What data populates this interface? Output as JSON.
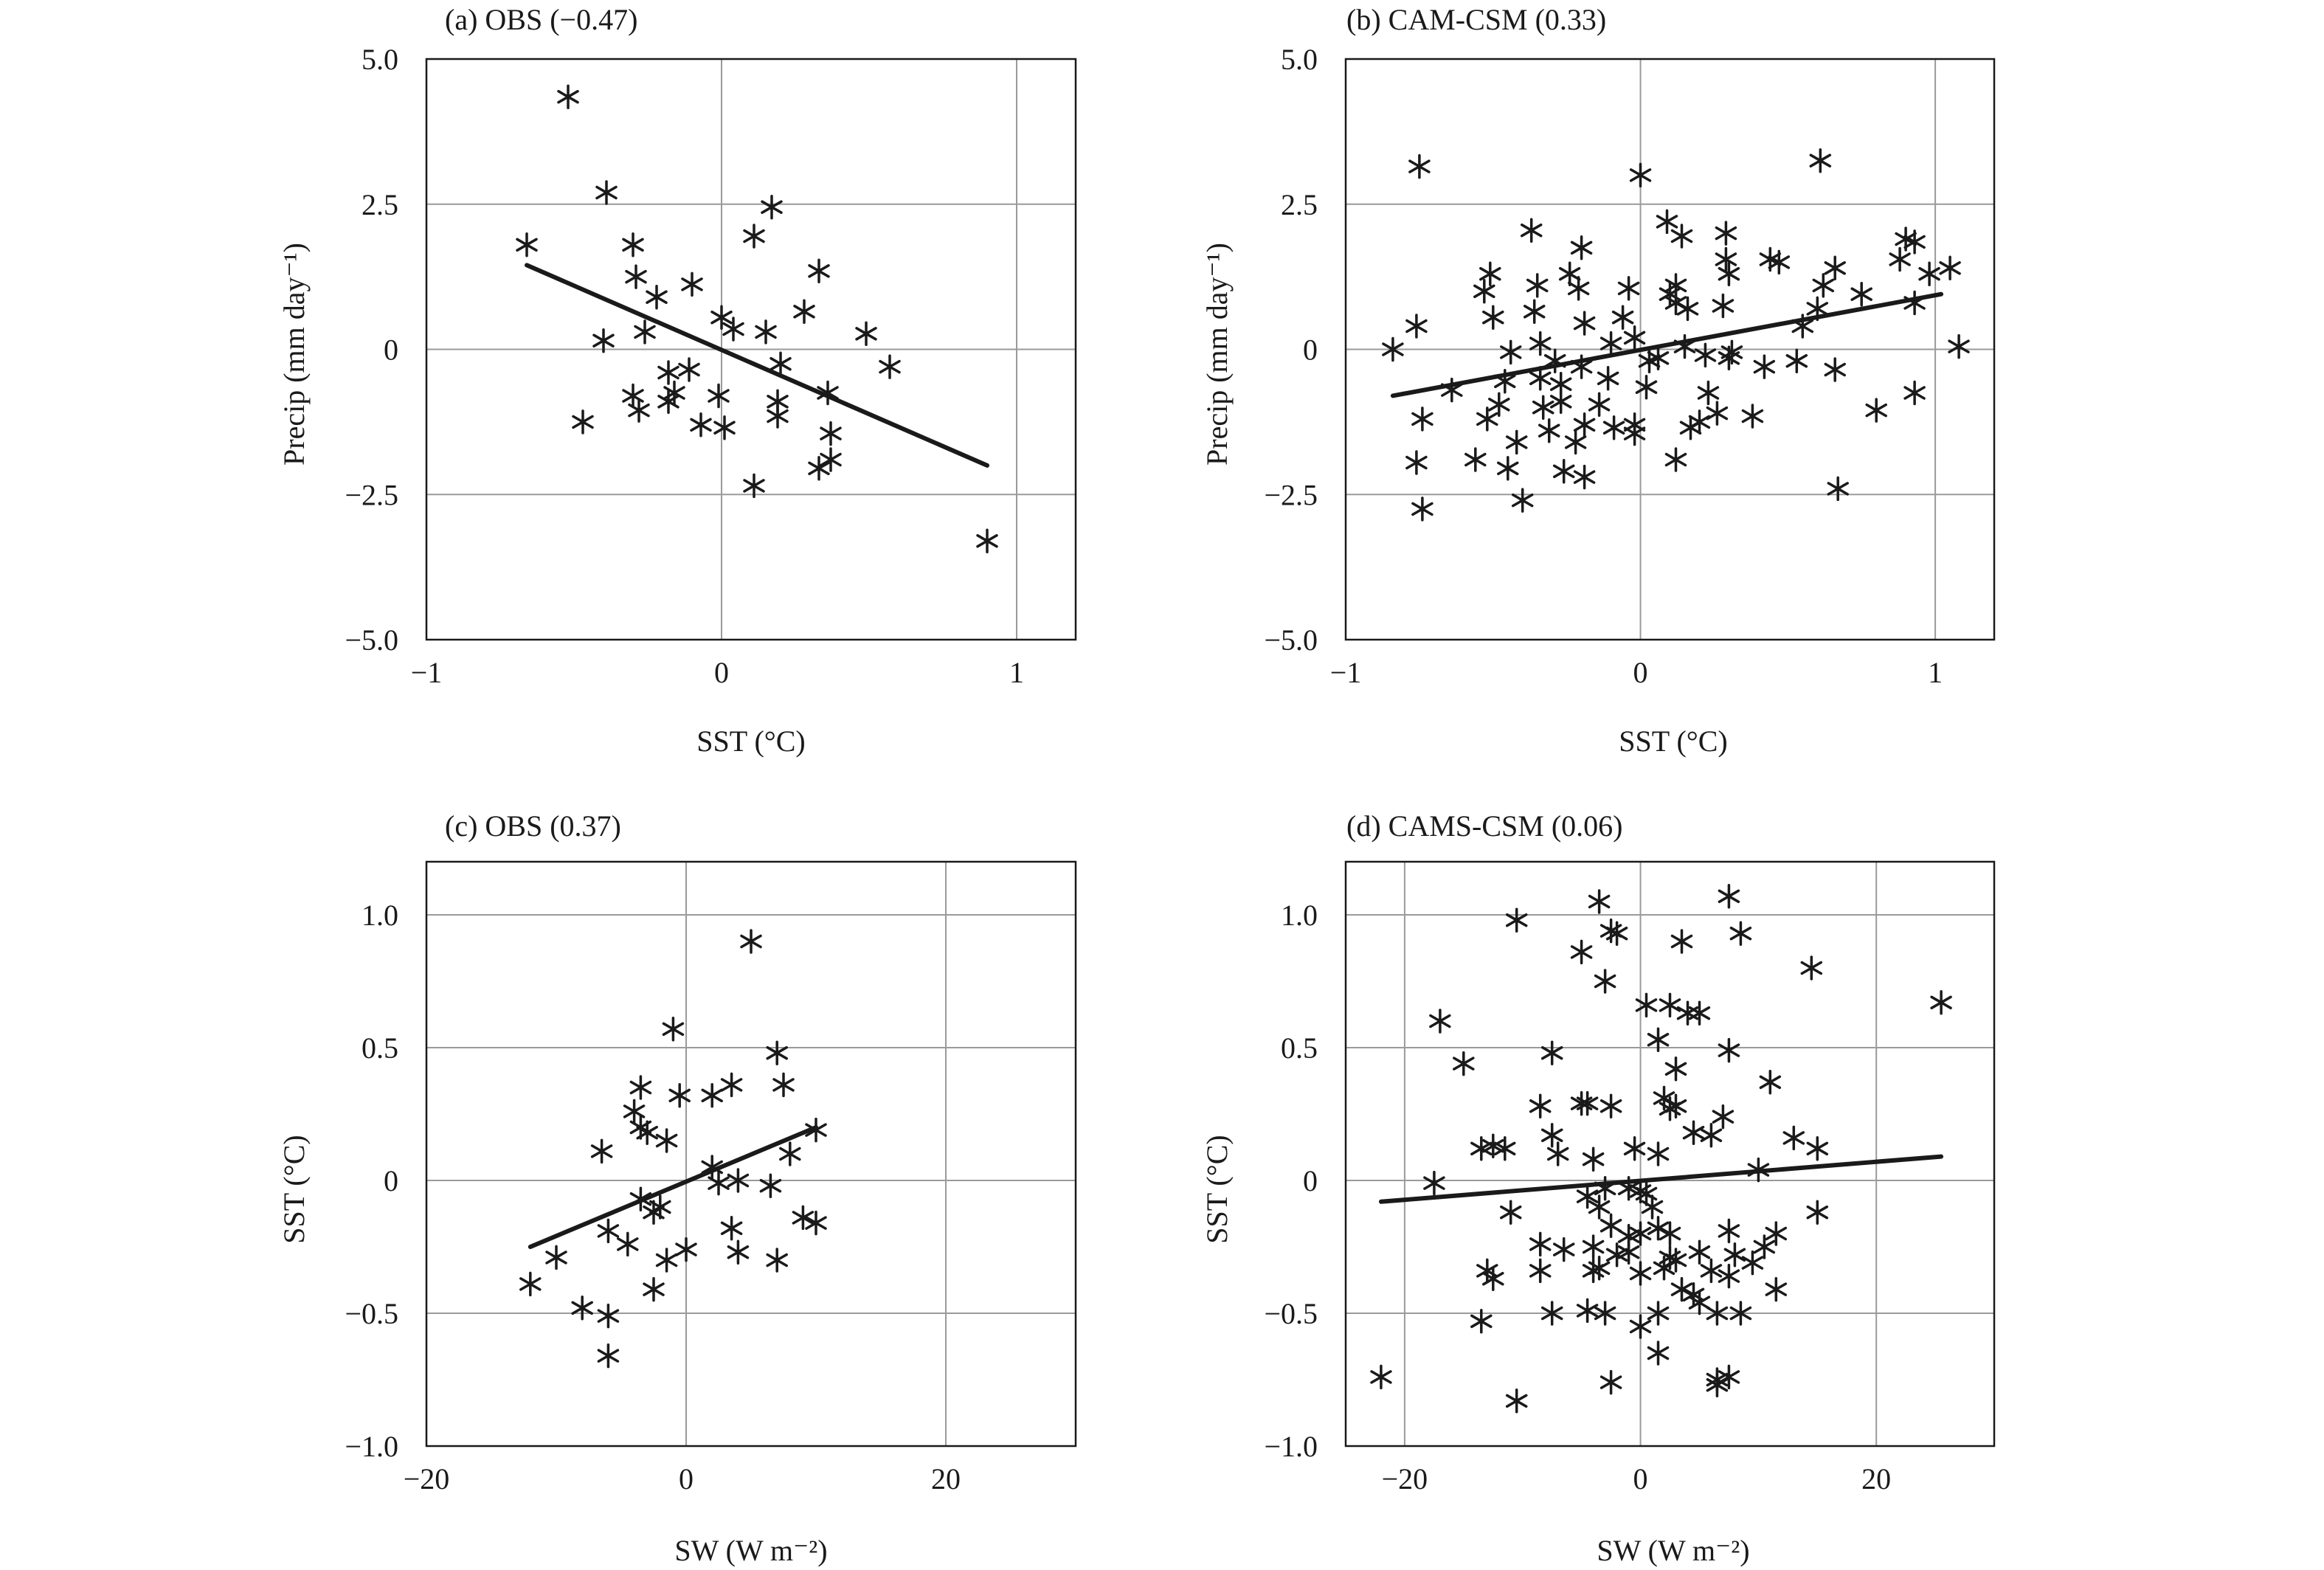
{
  "chart_data": [
    {
      "id": "a",
      "type": "scatter",
      "title": "(a) OBS (−0.47)",
      "xlabel": "SST (°C)",
      "ylabel": "Precip (mm day⁻¹)",
      "xlim": [
        -1,
        1.2
      ],
      "ylim": [
        -5,
        5
      ],
      "xticks": [
        -1,
        0,
        1
      ],
      "xtick_labels": [
        "−1",
        "0",
        "1"
      ],
      "yticks": [
        -5,
        -2.5,
        0,
        2.5,
        5
      ],
      "ytick_labels": [
        "−5.0",
        "−2.5",
        "0",
        "2.5",
        "5.0"
      ],
      "grid": true,
      "marker": "asterisk",
      "regression": {
        "x": [
          -0.66,
          0.9
        ],
        "y": [
          1.45,
          -2.0
        ]
      },
      "points": [
        [
          -0.52,
          4.35
        ],
        [
          -0.39,
          2.7
        ],
        [
          -0.66,
          1.8
        ],
        [
          -0.3,
          1.8
        ],
        [
          -0.29,
          1.25
        ],
        [
          -0.22,
          0.9
        ],
        [
          -0.1,
          1.12
        ],
        [
          -0.26,
          0.3
        ],
        [
          -0.4,
          0.15
        ],
        [
          -0.18,
          -0.4
        ],
        [
          -0.16,
          -0.75
        ],
        [
          -0.18,
          -0.9
        ],
        [
          -0.28,
          -1.05
        ],
        [
          -0.3,
          -0.8
        ],
        [
          -0.11,
          -0.35
        ],
        [
          -0.07,
          -1.3
        ],
        [
          -0.47,
          -1.25
        ],
        [
          0.0,
          0.55
        ],
        [
          0.04,
          0.35
        ],
        [
          -0.01,
          -0.8
        ],
        [
          0.01,
          -1.35
        ],
        [
          0.11,
          1.95
        ],
        [
          0.17,
          2.45
        ],
        [
          0.15,
          0.3
        ],
        [
          0.2,
          -0.25
        ],
        [
          0.19,
          -0.9
        ],
        [
          0.19,
          -1.15
        ],
        [
          0.28,
          0.65
        ],
        [
          0.33,
          1.35
        ],
        [
          0.36,
          -0.75
        ],
        [
          0.37,
          -1.45
        ],
        [
          0.37,
          -1.9
        ],
        [
          0.33,
          -2.05
        ],
        [
          0.11,
          -2.35
        ],
        [
          0.49,
          0.27
        ],
        [
          0.57,
          -0.3
        ],
        [
          0.9,
          -3.3
        ]
      ]
    },
    {
      "id": "b",
      "type": "scatter",
      "title": "(b) CAM-CSM (0.33)",
      "xlabel": "SST (°C)",
      "ylabel": "Precip (mm day⁻¹)",
      "xlim": [
        -1,
        1.2
      ],
      "ylim": [
        -5,
        5
      ],
      "xticks": [
        -1,
        0,
        1
      ],
      "xtick_labels": [
        "−1",
        "0",
        "1"
      ],
      "yticks": [
        -5,
        -2.5,
        0,
        2.5,
        5
      ],
      "ytick_labels": [
        "−5.0",
        "−2.5",
        "0",
        "2.5",
        "5.0"
      ],
      "grid": true,
      "marker": "asterisk",
      "regression": {
        "x": [
          -0.84,
          1.02
        ],
        "y": [
          -0.8,
          0.95
        ]
      },
      "points": [
        [
          -0.75,
          3.15
        ],
        [
          0.0,
          3.0
        ],
        [
          0.61,
          3.25
        ],
        [
          -0.84,
          0.0
        ],
        [
          -0.76,
          0.4
        ],
        [
          -0.74,
          -1.2
        ],
        [
          -0.76,
          -1.95
        ],
        [
          -0.74,
          -2.75
        ],
        [
          -0.64,
          -0.7
        ],
        [
          -0.56,
          -1.9
        ],
        [
          -0.53,
          1.0
        ],
        [
          -0.51,
          1.3
        ],
        [
          -0.5,
          0.55
        ],
        [
          -0.46,
          -0.55
        ],
        [
          -0.44,
          -0.05
        ],
        [
          -0.48,
          -0.95
        ],
        [
          -0.52,
          -1.2
        ],
        [
          -0.45,
          -2.05
        ],
        [
          -0.42,
          -1.6
        ],
        [
          -0.4,
          -2.6
        ],
        [
          -0.37,
          2.05
        ],
        [
          -0.35,
          1.1
        ],
        [
          -0.36,
          0.65
        ],
        [
          -0.34,
          0.1
        ],
        [
          -0.34,
          -0.5
        ],
        [
          -0.33,
          -1.0
        ],
        [
          -0.31,
          -1.4
        ],
        [
          -0.29,
          -0.2
        ],
        [
          -0.27,
          -0.6
        ],
        [
          -0.27,
          -0.9
        ],
        [
          -0.24,
          1.3
        ],
        [
          -0.2,
          1.75
        ],
        [
          -0.21,
          1.05
        ],
        [
          -0.19,
          0.45
        ],
        [
          -0.2,
          -0.3
        ],
        [
          -0.19,
          -1.3
        ],
        [
          -0.22,
          -1.6
        ],
        [
          -0.19,
          -2.2
        ],
        [
          -0.26,
          -2.1
        ],
        [
          -0.14,
          -0.95
        ],
        [
          -0.1,
          0.1
        ],
        [
          -0.11,
          -0.5
        ],
        [
          -0.09,
          -1.35
        ],
        [
          -0.06,
          0.55
        ],
        [
          -0.04,
          1.05
        ],
        [
          -0.02,
          0.2
        ],
        [
          -0.02,
          -1.3
        ],
        [
          -0.02,
          -1.45
        ],
        [
          0.02,
          -0.65
        ],
        [
          0.03,
          -0.2
        ],
        [
          0.06,
          -0.15
        ],
        [
          0.09,
          2.2
        ],
        [
          0.1,
          0.95
        ],
        [
          0.12,
          1.1
        ],
        [
          0.12,
          0.8
        ],
        [
          0.12,
          -1.9
        ],
        [
          0.14,
          1.95
        ],
        [
          0.16,
          0.7
        ],
        [
          0.15,
          0.05
        ],
        [
          0.17,
          -1.35
        ],
        [
          0.2,
          -1.25
        ],
        [
          0.22,
          -0.1
        ],
        [
          0.23,
          -0.75
        ],
        [
          0.26,
          -1.1
        ],
        [
          0.29,
          2.0
        ],
        [
          0.29,
          1.55
        ],
        [
          0.3,
          1.3
        ],
        [
          0.3,
          -0.15
        ],
        [
          0.31,
          -0.05
        ],
        [
          0.28,
          0.75
        ],
        [
          0.38,
          -1.15
        ],
        [
          0.42,
          -0.3
        ],
        [
          0.44,
          1.55
        ],
        [
          0.47,
          1.5
        ],
        [
          0.53,
          -0.2
        ],
        [
          0.55,
          0.4
        ],
        [
          0.6,
          0.7
        ],
        [
          0.62,
          1.1
        ],
        [
          0.66,
          1.4
        ],
        [
          0.66,
          -0.35
        ],
        [
          0.67,
          -2.4
        ],
        [
          0.75,
          0.95
        ],
        [
          0.8,
          -1.05
        ],
        [
          0.88,
          1.55
        ],
        [
          0.9,
          1.9
        ],
        [
          0.93,
          1.85
        ],
        [
          0.93,
          0.8
        ],
        [
          0.93,
          -0.75
        ],
        [
          0.98,
          1.3
        ],
        [
          1.05,
          1.4
        ],
        [
          1.08,
          0.05
        ]
      ]
    },
    {
      "id": "c",
      "type": "scatter",
      "title": "(c) OBS (0.37)",
      "xlabel": "SW (W m⁻²)",
      "ylabel": "SST (°C)",
      "xlim": [
        -20,
        30
      ],
      "ylim": [
        -1,
        1.2
      ],
      "xticks": [
        -20,
        0,
        20
      ],
      "xtick_labels": [
        "−20",
        "0",
        "20"
      ],
      "yticks": [
        -1,
        -0.5,
        0,
        0.5,
        1
      ],
      "ytick_labels": [
        "−1.0",
        "−0.5",
        "0",
        "0.5",
        "1.0"
      ],
      "grid": true,
      "marker": "asterisk",
      "regression": {
        "x": [
          -12,
          10
        ],
        "y": [
          -0.25,
          0.2
        ]
      },
      "points": [
        [
          5.0,
          0.9
        ],
        [
          -1.0,
          0.57
        ],
        [
          7.0,
          0.48
        ],
        [
          -3.5,
          0.35
        ],
        [
          3.5,
          0.36
        ],
        [
          7.5,
          0.36
        ],
        [
          -0.5,
          0.32
        ],
        [
          2.0,
          0.32
        ],
        [
          -4.0,
          0.26
        ],
        [
          -3.5,
          0.2
        ],
        [
          -3.0,
          0.18
        ],
        [
          -1.5,
          0.15
        ],
        [
          -6.5,
          0.11
        ],
        [
          8.0,
          0.1
        ],
        [
          10.0,
          0.19
        ],
        [
          2.0,
          0.05
        ],
        [
          2.5,
          -0.01
        ],
        [
          4.0,
          0.0
        ],
        [
          6.5,
          -0.02
        ],
        [
          -3.5,
          -0.07
        ],
        [
          -2.0,
          -0.1
        ],
        [
          -2.5,
          -0.12
        ],
        [
          9.0,
          -0.14
        ],
        [
          10.0,
          -0.16
        ],
        [
          -6.0,
          -0.19
        ],
        [
          3.5,
          -0.18
        ],
        [
          -4.5,
          -0.24
        ],
        [
          0.0,
          -0.26
        ],
        [
          4.0,
          -0.27
        ],
        [
          7.0,
          -0.3
        ],
        [
          -1.5,
          -0.3
        ],
        [
          -10.0,
          -0.29
        ],
        [
          -12.0,
          -0.39
        ],
        [
          -2.5,
          -0.41
        ],
        [
          -8.0,
          -0.48
        ],
        [
          -6.0,
          -0.51
        ],
        [
          -6.0,
          -0.66
        ]
      ]
    },
    {
      "id": "d",
      "type": "scatter",
      "title": "(d) CAMS-CSM (0.06)",
      "xlabel": "SW (W m⁻²)",
      "ylabel": "SST (°C)",
      "xlim": [
        -25,
        30
      ],
      "ylim": [
        -1,
        1.2
      ],
      "xticks": [
        -20,
        0,
        20
      ],
      "xtick_labels": [
        "−20",
        "0",
        "20"
      ],
      "yticks": [
        -1,
        -0.5,
        0,
        0.5,
        1
      ],
      "ytick_labels": [
        "−1.0",
        "−0.5",
        "0",
        "0.5",
        "1.0"
      ],
      "grid": true,
      "marker": "asterisk",
      "regression": {
        "x": [
          -22,
          25.5
        ],
        "y": [
          -0.08,
          0.09
        ]
      },
      "points": [
        [
          -3.5,
          1.05
        ],
        [
          7.5,
          1.07
        ],
        [
          -10.5,
          0.98
        ],
        [
          -2.5,
          0.94
        ],
        [
          -2.0,
          0.93
        ],
        [
          8.5,
          0.93
        ],
        [
          3.5,
          0.9
        ],
        [
          -5.0,
          0.86
        ],
        [
          -3.0,
          0.75
        ],
        [
          14.5,
          0.8
        ],
        [
          25.5,
          0.67
        ],
        [
          -17.0,
          0.6
        ],
        [
          0.5,
          0.66
        ],
        [
          2.5,
          0.66
        ],
        [
          4.0,
          0.63
        ],
        [
          5.0,
          0.63
        ],
        [
          1.5,
          0.53
        ],
        [
          -15.0,
          0.44
        ],
        [
          -7.5,
          0.48
        ],
        [
          7.5,
          0.49
        ],
        [
          3.0,
          0.42
        ],
        [
          11.0,
          0.37
        ],
        [
          -5.0,
          0.29
        ],
        [
          -8.5,
          0.28
        ],
        [
          -4.5,
          0.29
        ],
        [
          -2.5,
          0.28
        ],
        [
          2.0,
          0.31
        ],
        [
          2.5,
          0.27
        ],
        [
          3.0,
          0.28
        ],
        [
          7.0,
          0.24
        ],
        [
          -7.5,
          0.17
        ],
        [
          4.5,
          0.18
        ],
        [
          6.0,
          0.17
        ],
        [
          -13.5,
          0.12
        ],
        [
          -12.5,
          0.13
        ],
        [
          -11.5,
          0.12
        ],
        [
          -7.0,
          0.1
        ],
        [
          -4.0,
          0.08
        ],
        [
          -0.5,
          0.12
        ],
        [
          1.5,
          0.1
        ],
        [
          13.0,
          0.16
        ],
        [
          15.0,
          0.12
        ],
        [
          10.0,
          0.04
        ],
        [
          -3.0,
          -0.03
        ],
        [
          -1.0,
          -0.03
        ],
        [
          0.0,
          -0.04
        ],
        [
          0.5,
          -0.05
        ],
        [
          -17.5,
          -0.01
        ],
        [
          -4.5,
          -0.06
        ],
        [
          -3.5,
          -0.1
        ],
        [
          1.0,
          -0.1
        ],
        [
          -11.0,
          -0.12
        ],
        [
          -2.5,
          -0.17
        ],
        [
          1.5,
          -0.18
        ],
        [
          2.5,
          -0.2
        ],
        [
          -1.0,
          -0.21
        ],
        [
          0.0,
          -0.2
        ],
        [
          7.5,
          -0.19
        ],
        [
          11.5,
          -0.2
        ],
        [
          15.0,
          -0.12
        ],
        [
          -8.5,
          -0.24
        ],
        [
          -6.5,
          -0.26
        ],
        [
          -4.0,
          -0.25
        ],
        [
          -2.0,
          -0.28
        ],
        [
          -1.0,
          -0.27
        ],
        [
          2.5,
          -0.29
        ],
        [
          3.0,
          -0.3
        ],
        [
          5.0,
          -0.27
        ],
        [
          8.0,
          -0.28
        ],
        [
          9.5,
          -0.31
        ],
        [
          10.5,
          -0.25
        ],
        [
          -13.0,
          -0.34
        ],
        [
          -12.5,
          -0.37
        ],
        [
          -8.5,
          -0.34
        ],
        [
          -4.0,
          -0.34
        ],
        [
          -3.5,
          -0.33
        ],
        [
          0.0,
          -0.35
        ],
        [
          2.0,
          -0.33
        ],
        [
          6.0,
          -0.34
        ],
        [
          7.5,
          -0.36
        ],
        [
          11.5,
          -0.41
        ],
        [
          -7.5,
          -0.5
        ],
        [
          -4.5,
          -0.49
        ],
        [
          -3.0,
          -0.5
        ],
        [
          3.5,
          -0.41
        ],
        [
          4.5,
          -0.43
        ],
        [
          5.0,
          -0.46
        ],
        [
          6.5,
          -0.5
        ],
        [
          8.5,
          -0.5
        ],
        [
          -13.5,
          -0.53
        ],
        [
          0.0,
          -0.55
        ],
        [
          1.5,
          -0.5
        ],
        [
          1.5,
          -0.65
        ],
        [
          -22.0,
          -0.74
        ],
        [
          -2.5,
          -0.76
        ],
        [
          6.5,
          -0.75
        ],
        [
          6.5,
          -0.77
        ],
        [
          7.5,
          -0.74
        ],
        [
          -10.5,
          -0.83
        ]
      ]
    }
  ]
}
